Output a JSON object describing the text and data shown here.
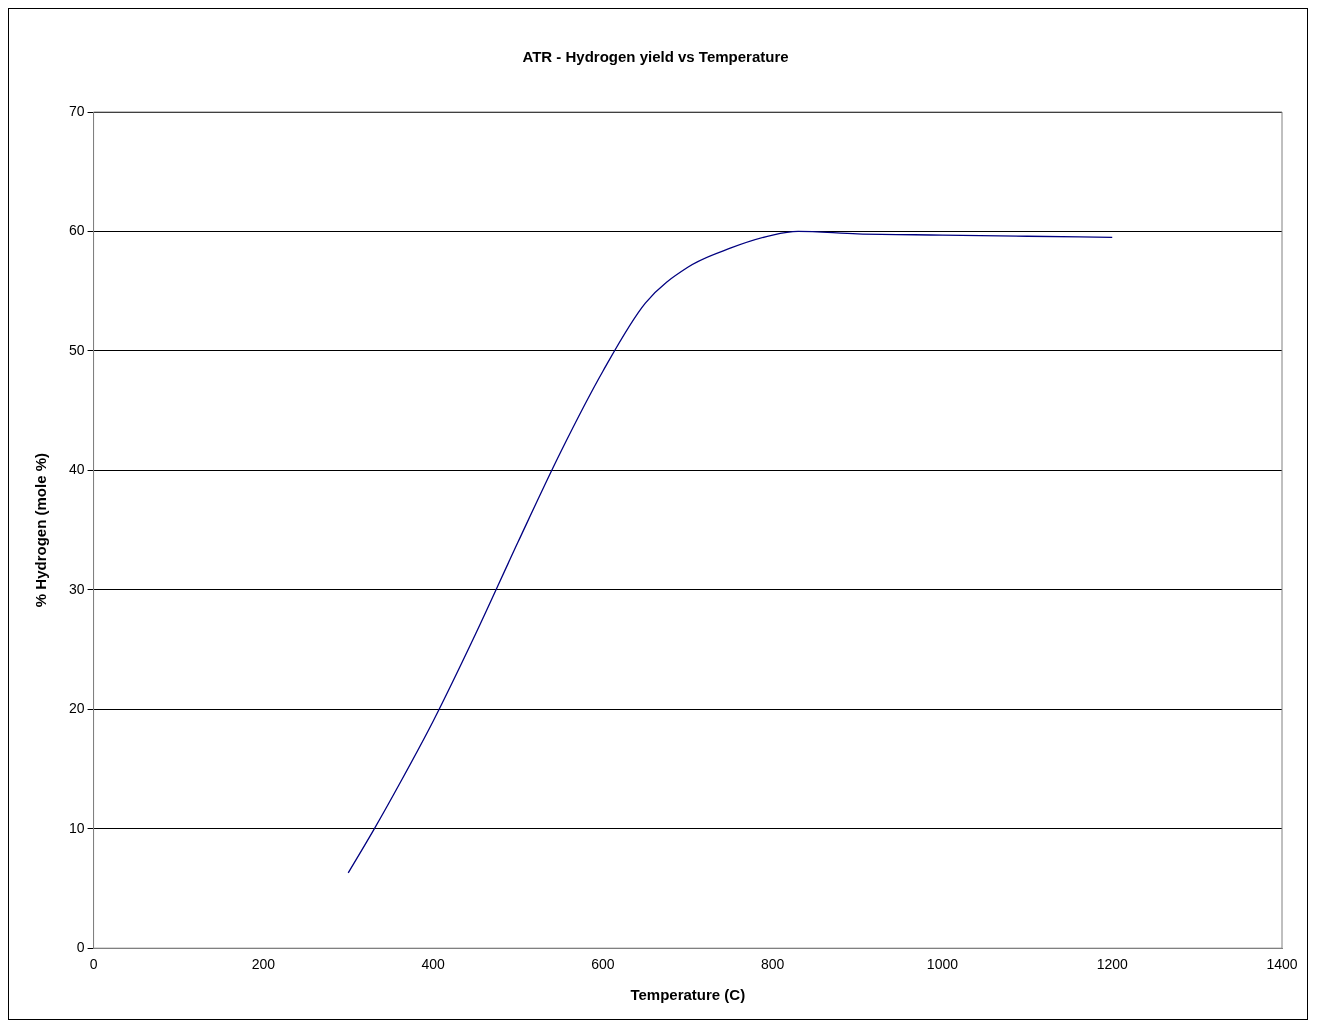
{
  "chart_data": {
    "type": "line",
    "title": "ATR - Hydrogen yield vs Temperature",
    "xlabel": "Temperature (C)",
    "ylabel": "% Hydrogen (mole %)",
    "series": [
      {
        "color": "#000080",
        "x": [
          300,
          330,
          360,
          400,
          450,
          500,
          550,
          600,
          650,
          700,
          750,
          800,
          830,
          900,
          1000,
          1100,
          1200
        ],
        "values": [
          6.3,
          9.9,
          13.7,
          19,
          26.3,
          34,
          41.5,
          48.3,
          54,
          57,
          58.6,
          59.7,
          60,
          59.8,
          59.7,
          59.6,
          59.5
        ]
      }
    ],
    "xlim": [
      0,
      1400
    ],
    "xticks": [
      0,
      200,
      400,
      600,
      800,
      1000,
      1200,
      1400
    ],
    "ylim": [
      0,
      70
    ],
    "yticks": [
      0,
      10,
      20,
      30,
      40,
      50,
      60,
      70
    ],
    "grid": "y",
    "legend": false,
    "marker": "none",
    "line_style": "solid"
  }
}
